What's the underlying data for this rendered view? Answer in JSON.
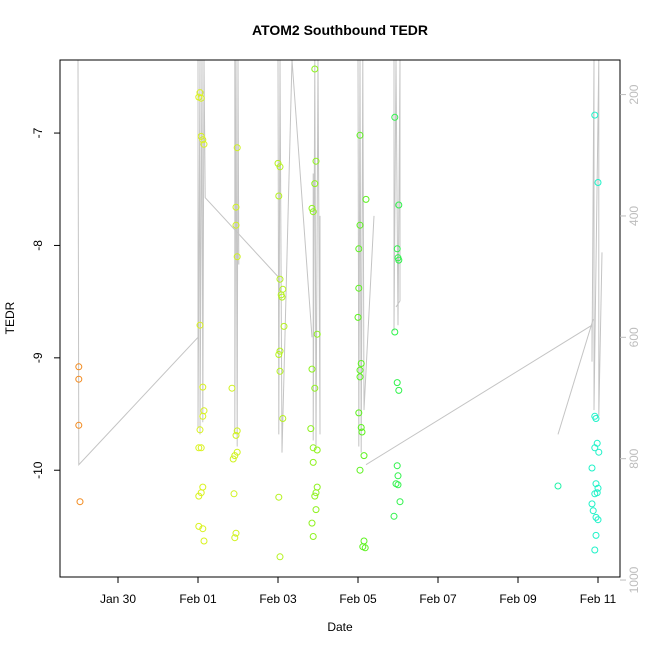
{
  "chart_data": {
    "type": "scatter",
    "title": "ATOM2 Southbound TEDR",
    "xlabel": "Date",
    "ylabel": "TEDR",
    "x_ticks": [
      "Jan 30",
      "Feb 01",
      "Feb 03",
      "Feb 05",
      "Feb 07",
      "Feb 09",
      "Feb 11"
    ],
    "x_tick_values": [
      1,
      3,
      5,
      7,
      9,
      11,
      13
    ],
    "xlim": [
      -0.45,
      13.55
    ],
    "y_ticks": [
      "-7",
      "-8",
      "-9",
      "-10"
    ],
    "y_tick_values": [
      -7,
      -8,
      -9,
      -10
    ],
    "ylim": [
      -10.95,
      -6.35
    ],
    "y2_ticks": [
      "200",
      "400",
      "600",
      "800",
      "1000"
    ],
    "y2_tick_values": [
      200,
      400,
      600,
      800,
      1000
    ],
    "y2lim": [
      995,
      143
    ],
    "y2_color": "#bdbdbd",
    "line_color": "#c4c4c4",
    "grid": false,
    "points": [
      {
        "x": 0.02,
        "y": -9.08,
        "color": "#f28a1e"
      },
      {
        "x": 0.02,
        "y": -9.19,
        "color": "#f28a1e"
      },
      {
        "x": 0.02,
        "y": -9.6,
        "color": "#f28a1e"
      },
      {
        "x": 0.05,
        "y": -10.28,
        "color": "#f28a1e"
      },
      {
        "x": 3.02,
        "y": -6.68,
        "color": "#d9f21e"
      },
      {
        "x": 3.05,
        "y": -6.64,
        "color": "#d9f21e"
      },
      {
        "x": 3.08,
        "y": -6.69,
        "color": "#d9f21e"
      },
      {
        "x": 3.08,
        "y": -7.03,
        "color": "#d9f21e"
      },
      {
        "x": 3.12,
        "y": -7.06,
        "color": "#d9f21e"
      },
      {
        "x": 3.15,
        "y": -7.1,
        "color": "#d9f21e"
      },
      {
        "x": 3.05,
        "y": -8.71,
        "color": "#d9f21e"
      },
      {
        "x": 3.12,
        "y": -9.26,
        "color": "#d9f21e"
      },
      {
        "x": 3.15,
        "y": -9.47,
        "color": "#d9f21e"
      },
      {
        "x": 3.12,
        "y": -9.52,
        "color": "#d9f21e"
      },
      {
        "x": 3.05,
        "y": -9.64,
        "color": "#d9f21e"
      },
      {
        "x": 3.02,
        "y": -9.8,
        "color": "#d9f21e"
      },
      {
        "x": 3.08,
        "y": -9.8,
        "color": "#d9f21e"
      },
      {
        "x": 3.12,
        "y": -10.15,
        "color": "#d9f21e"
      },
      {
        "x": 3.08,
        "y": -10.2,
        "color": "#d9f21e"
      },
      {
        "x": 3.02,
        "y": -10.23,
        "color": "#d9f21e"
      },
      {
        "x": 3.02,
        "y": -10.5,
        "color": "#d9f21e"
      },
      {
        "x": 3.12,
        "y": -10.52,
        "color": "#d9f21e"
      },
      {
        "x": 3.15,
        "y": -10.63,
        "color": "#d9f21e"
      },
      {
        "x": 3.98,
        "y": -7.13,
        "color": "#d0f21e"
      },
      {
        "x": 3.95,
        "y": -7.66,
        "color": "#d0f21e"
      },
      {
        "x": 3.95,
        "y": -7.82,
        "color": "#d0f21e"
      },
      {
        "x": 3.98,
        "y": -8.1,
        "color": "#d0f21e"
      },
      {
        "x": 3.85,
        "y": -9.27,
        "color": "#d0f21e"
      },
      {
        "x": 3.98,
        "y": -9.65,
        "color": "#d0f21e"
      },
      {
        "x": 3.95,
        "y": -9.69,
        "color": "#d0f21e"
      },
      {
        "x": 3.98,
        "y": -9.84,
        "color": "#d0f21e"
      },
      {
        "x": 3.92,
        "y": -9.87,
        "color": "#d0f21e"
      },
      {
        "x": 3.88,
        "y": -9.9,
        "color": "#d0f21e"
      },
      {
        "x": 3.9,
        "y": -10.21,
        "color": "#d0f21e"
      },
      {
        "x": 3.95,
        "y": -10.56,
        "color": "#d0f21e"
      },
      {
        "x": 3.92,
        "y": -10.6,
        "color": "#d0f21e"
      },
      {
        "x": 5.0,
        "y": -7.27,
        "color": "#b5f21e"
      },
      {
        "x": 5.05,
        "y": -7.3,
        "color": "#b5f21e"
      },
      {
        "x": 5.02,
        "y": -7.56,
        "color": "#b5f21e"
      },
      {
        "x": 5.05,
        "y": -8.3,
        "color": "#b5f21e"
      },
      {
        "x": 5.12,
        "y": -8.39,
        "color": "#b5f21e"
      },
      {
        "x": 5.08,
        "y": -8.44,
        "color": "#b5f21e"
      },
      {
        "x": 5.1,
        "y": -8.46,
        "color": "#b5f21e"
      },
      {
        "x": 5.15,
        "y": -8.72,
        "color": "#b5f21e"
      },
      {
        "x": 5.05,
        "y": -8.94,
        "color": "#b5f21e"
      },
      {
        "x": 5.02,
        "y": -8.97,
        "color": "#b5f21e"
      },
      {
        "x": 5.05,
        "y": -9.12,
        "color": "#b5f21e"
      },
      {
        "x": 5.12,
        "y": -9.54,
        "color": "#b5f21e"
      },
      {
        "x": 5.02,
        "y": -10.24,
        "color": "#b5f21e"
      },
      {
        "x": 5.05,
        "y": -10.77,
        "color": "#b5f21e"
      },
      {
        "x": 5.92,
        "y": -6.43,
        "color": "#8ef21e"
      },
      {
        "x": 5.95,
        "y": -7.25,
        "color": "#8ef21e"
      },
      {
        "x": 5.92,
        "y": -7.45,
        "color": "#8ef21e"
      },
      {
        "x": 5.85,
        "y": -7.67,
        "color": "#8ef21e"
      },
      {
        "x": 5.88,
        "y": -7.7,
        "color": "#8ef21e"
      },
      {
        "x": 5.98,
        "y": -8.79,
        "color": "#8ef21e"
      },
      {
        "x": 5.85,
        "y": -9.1,
        "color": "#8ef21e"
      },
      {
        "x": 5.92,
        "y": -9.27,
        "color": "#8ef21e"
      },
      {
        "x": 5.82,
        "y": -9.63,
        "color": "#8ef21e"
      },
      {
        "x": 5.88,
        "y": -9.8,
        "color": "#8ef21e"
      },
      {
        "x": 5.98,
        "y": -9.82,
        "color": "#8ef21e"
      },
      {
        "x": 5.88,
        "y": -9.93,
        "color": "#8ef21e"
      },
      {
        "x": 5.98,
        "y": -10.15,
        "color": "#8ef21e"
      },
      {
        "x": 5.95,
        "y": -10.2,
        "color": "#8ef21e"
      },
      {
        "x": 5.92,
        "y": -10.23,
        "color": "#8ef21e"
      },
      {
        "x": 5.95,
        "y": -10.35,
        "color": "#8ef21e"
      },
      {
        "x": 5.85,
        "y": -10.47,
        "color": "#8ef21e"
      },
      {
        "x": 5.88,
        "y": -10.59,
        "color": "#8ef21e"
      },
      {
        "x": 7.05,
        "y": -7.02,
        "color": "#5cf21e"
      },
      {
        "x": 7.2,
        "y": -7.59,
        "color": "#5cf21e"
      },
      {
        "x": 7.05,
        "y": -7.82,
        "color": "#5cf21e"
      },
      {
        "x": 7.02,
        "y": -8.03,
        "color": "#5cf21e"
      },
      {
        "x": 7.02,
        "y": -8.38,
        "color": "#5cf21e"
      },
      {
        "x": 7.0,
        "y": -8.64,
        "color": "#5cf21e"
      },
      {
        "x": 7.08,
        "y": -9.05,
        "color": "#5cf21e"
      },
      {
        "x": 7.05,
        "y": -9.11,
        "color": "#5cf21e"
      },
      {
        "x": 7.05,
        "y": -9.17,
        "color": "#5cf21e"
      },
      {
        "x": 7.02,
        "y": -9.49,
        "color": "#5cf21e"
      },
      {
        "x": 7.08,
        "y": -9.62,
        "color": "#5cf21e"
      },
      {
        "x": 7.1,
        "y": -9.66,
        "color": "#5cf21e"
      },
      {
        "x": 7.15,
        "y": -9.87,
        "color": "#5cf21e"
      },
      {
        "x": 7.05,
        "y": -10.0,
        "color": "#5cf21e"
      },
      {
        "x": 7.15,
        "y": -10.63,
        "color": "#5cf21e"
      },
      {
        "x": 7.12,
        "y": -10.68,
        "color": "#5cf21e"
      },
      {
        "x": 7.18,
        "y": -10.69,
        "color": "#5cf21e"
      },
      {
        "x": 7.92,
        "y": -6.86,
        "color": "#2ef24a"
      },
      {
        "x": 8.02,
        "y": -7.64,
        "color": "#2ef24a"
      },
      {
        "x": 7.98,
        "y": -8.03,
        "color": "#2ef24a"
      },
      {
        "x": 8.0,
        "y": -8.11,
        "color": "#2ef24a"
      },
      {
        "x": 8.02,
        "y": -8.13,
        "color": "#2ef24a"
      },
      {
        "x": 7.92,
        "y": -8.77,
        "color": "#2ef24a"
      },
      {
        "x": 7.98,
        "y": -9.22,
        "color": "#2ef24a"
      },
      {
        "x": 8.02,
        "y": -9.29,
        "color": "#2ef24a"
      },
      {
        "x": 7.98,
        "y": -9.96,
        "color": "#2ef24a"
      },
      {
        "x": 8.0,
        "y": -10.05,
        "color": "#2ef24a"
      },
      {
        "x": 7.95,
        "y": -10.12,
        "color": "#2ef24a"
      },
      {
        "x": 8.0,
        "y": -10.13,
        "color": "#2ef24a"
      },
      {
        "x": 8.05,
        "y": -10.28,
        "color": "#2ef24a"
      },
      {
        "x": 7.9,
        "y": -10.41,
        "color": "#2ef24a"
      },
      {
        "x": 12.0,
        "y": -10.14,
        "color": "#1ef2a8"
      },
      {
        "x": 12.92,
        "y": -6.84,
        "color": "#1ef2c8"
      },
      {
        "x": 13.0,
        "y": -7.44,
        "color": "#1ef2c8"
      },
      {
        "x": 12.92,
        "y": -9.52,
        "color": "#1ef2c8"
      },
      {
        "x": 12.95,
        "y": -9.54,
        "color": "#1ef2c8"
      },
      {
        "x": 12.98,
        "y": -9.76,
        "color": "#1ef2c8"
      },
      {
        "x": 12.92,
        "y": -9.8,
        "color": "#1ef2c8"
      },
      {
        "x": 13.02,
        "y": -9.84,
        "color": "#1ef2c8"
      },
      {
        "x": 12.85,
        "y": -9.98,
        "color": "#1ef2c8"
      },
      {
        "x": 12.95,
        "y": -10.12,
        "color": "#1ef2c8"
      },
      {
        "x": 13.0,
        "y": -10.16,
        "color": "#1ef2c8"
      },
      {
        "x": 12.92,
        "y": -10.21,
        "color": "#1ef2c8"
      },
      {
        "x": 12.98,
        "y": -10.2,
        "color": "#1ef2c8"
      },
      {
        "x": 12.85,
        "y": -10.3,
        "color": "#1ef2c8"
      },
      {
        "x": 12.88,
        "y": -10.36,
        "color": "#1ef2c8"
      },
      {
        "x": 12.95,
        "y": -10.42,
        "color": "#1ef2c8"
      },
      {
        "x": 13.0,
        "y": -10.44,
        "color": "#1ef2c8"
      },
      {
        "x": 12.95,
        "y": -10.58,
        "color": "#1ef2c8"
      },
      {
        "x": 12.92,
        "y": -10.71,
        "color": "#1ef2c8"
      }
    ],
    "profile_lines": [
      [
        [
          0.0,
          143
        ],
        [
          0.02,
          810
        ],
        [
          3.0,
          600
        ]
      ],
      [
        [
          3.0,
          143
        ],
        [
          3.0,
          750
        ],
        [
          3.05,
          143
        ],
        [
          3.05,
          760
        ],
        [
          3.1,
          143
        ],
        [
          3.12,
          740
        ],
        [
          3.15,
          143
        ],
        [
          3.18,
          370
        ],
        [
          5.0,
          500
        ]
      ],
      [
        [
          3.92,
          143
        ],
        [
          3.92,
          760
        ],
        [
          3.95,
          143
        ],
        [
          3.98,
          780
        ],
        [
          4.0,
          143
        ],
        [
          4.02,
          480
        ]
      ],
      [
        [
          5.0,
          143
        ],
        [
          5.02,
          760
        ],
        [
          5.05,
          143
        ],
        [
          5.1,
          790
        ],
        [
          5.35,
          143
        ],
        [
          5.85,
          600
        ]
      ],
      [
        [
          5.88,
          330
        ],
        [
          5.88,
          770
        ],
        [
          5.92,
          143
        ],
        [
          5.95,
          780
        ],
        [
          6.0,
          143
        ],
        [
          6.05,
          760
        ],
        [
          6.05,
          400
        ]
      ],
      [
        [
          7.0,
          143
        ],
        [
          7.02,
          780
        ],
        [
          7.05,
          143
        ],
        [
          7.08,
          790
        ],
        [
          7.12,
          143
        ],
        [
          7.15,
          720
        ],
        [
          7.4,
          400
        ]
      ],
      [
        [
          7.9,
          143
        ],
        [
          7.9,
          590
        ],
        [
          7.95,
          143
        ],
        [
          8.0,
          580
        ],
        [
          8.05,
          143
        ],
        [
          8.05,
          540
        ],
        [
          7.95,
          550
        ]
      ],
      [
        [
          7.2,
          810
        ],
        [
          12.85,
          580
        ],
        [
          12.85,
          640
        ],
        [
          12.9,
          143
        ],
        [
          12.9,
          720
        ],
        [
          13.02,
          143
        ],
        [
          13.02,
          730
        ],
        [
          13.1,
          460
        ]
      ],
      [
        [
          12.0,
          760
        ],
        [
          12.88,
          570
        ]
      ]
    ]
  }
}
